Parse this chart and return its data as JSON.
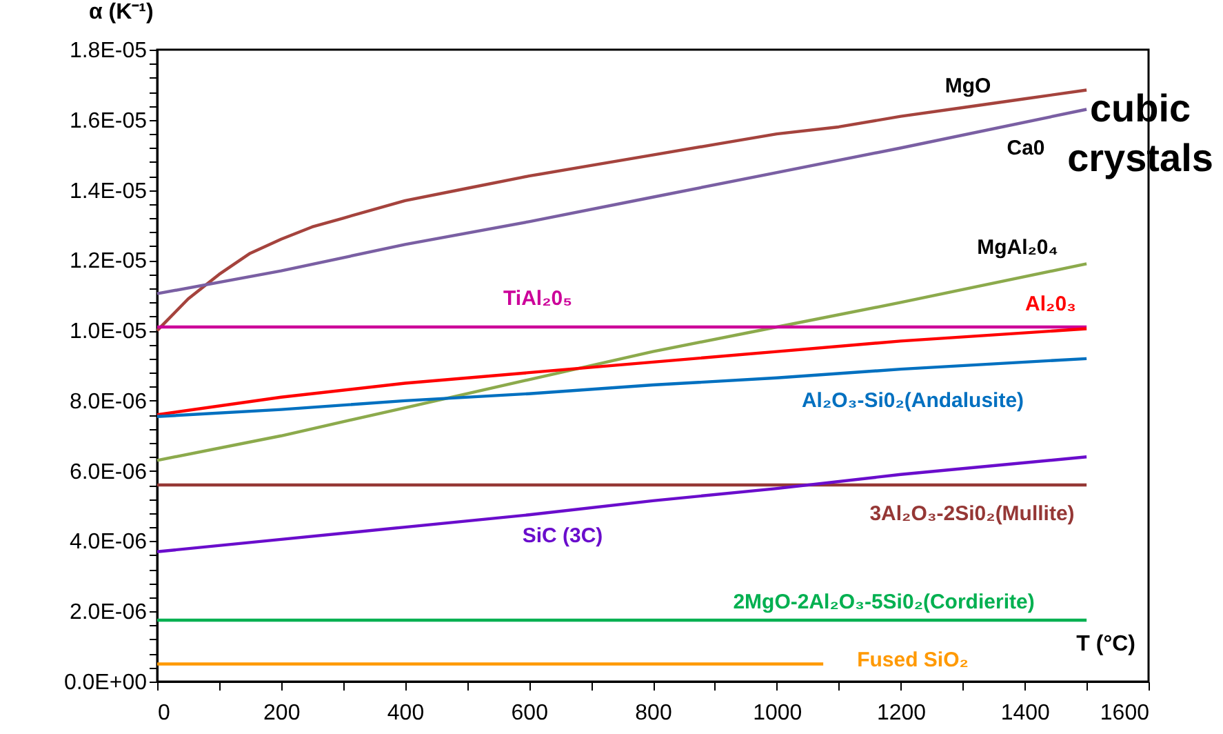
{
  "chart_data": {
    "type": "line",
    "ylabel": "α (K⁻¹)",
    "xlabel": "T (°C)",
    "xlim": [
      0,
      1600
    ],
    "xticks": [
      0,
      {
        "value": 100,
        "label": null
      },
      200,
      {
        "value": 300,
        "label": null
      },
      400,
      {
        "value": 500,
        "label": null
      },
      600,
      {
        "value": 700,
        "label": null
      },
      800,
      {
        "value": 900,
        "label": null
      },
      1000,
      {
        "value": 1100,
        "label": null
      },
      1200,
      {
        "value": 1300,
        "label": null
      },
      1400,
      {
        "value": 1500,
        "label": null
      },
      1600
    ],
    "ylim": [
      0,
      1.8e-05
    ],
    "yticks": [
      {
        "value": 0,
        "label": "0.0E+00"
      },
      {
        "value": 4e-07,
        "label": null
      },
      {
        "value": 8e-07,
        "label": null
      },
      {
        "value": 1.2e-06,
        "label": null
      },
      {
        "value": 1.6e-06,
        "label": null
      },
      {
        "value": 2e-06,
        "label": "2.0E-06"
      },
      {
        "value": 2.4e-06,
        "label": null
      },
      {
        "value": 2.8e-06,
        "label": null
      },
      {
        "value": 3.2e-06,
        "label": null
      },
      {
        "value": 3.6e-06,
        "label": null
      },
      {
        "value": 4e-06,
        "label": "4.0E-06"
      },
      {
        "value": 4.4e-06,
        "label": null
      },
      {
        "value": 4.8e-06,
        "label": null
      },
      {
        "value": 5.2e-06,
        "label": null
      },
      {
        "value": 5.6e-06,
        "label": null
      },
      {
        "value": 6e-06,
        "label": "6.0E-06"
      },
      {
        "value": 6.4e-06,
        "label": null
      },
      {
        "value": 6.8e-06,
        "label": null
      },
      {
        "value": 7.2e-06,
        "label": null
      },
      {
        "value": 7.6e-06,
        "label": null
      },
      {
        "value": 8e-06,
        "label": "8.0E-06"
      },
      {
        "value": 8.4e-06,
        "label": null
      },
      {
        "value": 8.8e-06,
        "label": null
      },
      {
        "value": 9.2e-06,
        "label": null
      },
      {
        "value": 9.6e-06,
        "label": null
      },
      {
        "value": 1e-05,
        "label": "1.0E-05"
      },
      {
        "value": 1.04e-05,
        "label": null
      },
      {
        "value": 1.08e-05,
        "label": null
      },
      {
        "value": 1.12e-05,
        "label": null
      },
      {
        "value": 1.16e-05,
        "label": null
      },
      {
        "value": 1.2e-05,
        "label": "1.2E-05"
      },
      {
        "value": 1.24e-05,
        "label": null
      },
      {
        "value": 1.28e-05,
        "label": null
      },
      {
        "value": 1.32e-05,
        "label": null
      },
      {
        "value": 1.36e-05,
        "label": null
      },
      {
        "value": 1.4e-05,
        "label": "1.4E-05"
      },
      {
        "value": 1.44e-05,
        "label": null
      },
      {
        "value": 1.48e-05,
        "label": null
      },
      {
        "value": 1.52e-05,
        "label": null
      },
      {
        "value": 1.56e-05,
        "label": null
      },
      {
        "value": 1.6e-05,
        "label": "1.6E-05"
      },
      {
        "value": 1.64e-05,
        "label": null
      },
      {
        "value": 1.68e-05,
        "label": null
      },
      {
        "value": 1.72e-05,
        "label": null
      },
      {
        "value": 1.76e-05,
        "label": null
      },
      {
        "value": 1.8e-05,
        "label": "1.8E-05"
      }
    ],
    "grid": false,
    "legend": false,
    "marker": "none",
    "line_style": "solid",
    "annotations": [
      "cubic crystals"
    ],
    "series": [
      {
        "name": "MgO",
        "color": "#a5433d",
        "x": [
          0,
          50,
          100,
          150,
          200,
          250,
          300,
          400,
          500,
          600,
          700,
          800,
          900,
          1000,
          1100,
          1200,
          1300,
          1400,
          1500
        ],
        "values": [
          1e-05,
          1.09e-05,
          1.16e-05,
          1.22e-05,
          1.26e-05,
          1.295e-05,
          1.32e-05,
          1.37e-05,
          1.405e-05,
          1.44e-05,
          1.47e-05,
          1.5e-05,
          1.53e-05,
          1.56e-05,
          1.58e-05,
          1.61e-05,
          1.635e-05,
          1.66e-05,
          1.685e-05
        ]
      },
      {
        "name": "Ca0",
        "color": "#7a5fa3",
        "x": [
          0,
          200,
          400,
          600,
          800,
          1000,
          1200,
          1500
        ],
        "values": [
          1.105e-05,
          1.17e-05,
          1.245e-05,
          1.31e-05,
          1.38e-05,
          1.45e-05,
          1.52e-05,
          1.63e-05
        ]
      },
      {
        "name": "MgAl₂0₄",
        "color": "#8caa4c",
        "x": [
          0,
          200,
          400,
          600,
          800,
          1000,
          1200,
          1500
        ],
        "values": [
          6.3e-06,
          7e-06,
          7.8e-06,
          8.6e-06,
          9.4e-06,
          1.01e-05,
          1.08e-05,
          1.19e-05
        ]
      },
      {
        "name": "TiAl₂0₅",
        "color": "#cc0099",
        "x": [
          0,
          1500
        ],
        "values": [
          1.01e-05,
          1.01e-05
        ]
      },
      {
        "name": "Al₂0₃",
        "color": "#ff0000",
        "x": [
          0,
          200,
          400,
          600,
          800,
          1000,
          1200,
          1500
        ],
        "values": [
          7.6e-06,
          8.1e-06,
          8.5e-06,
          8.8e-06,
          9.1e-06,
          9.4e-06,
          9.7e-06,
          1.005e-05
        ]
      },
      {
        "name": "Al₂O₃-Si0₂(Andalusite)",
        "color": "#0070c0",
        "x": [
          0,
          200,
          400,
          600,
          800,
          1000,
          1200,
          1500
        ],
        "values": [
          7.55e-06,
          7.75e-06,
          8e-06,
          8.2e-06,
          8.45e-06,
          8.65e-06,
          8.9e-06,
          9.2e-06
        ]
      },
      {
        "name": "3Al₂O₃-2Si0₂(Mullite)",
        "color": "#953735",
        "x": [
          0,
          1500
        ],
        "values": [
          5.6e-06,
          5.6e-06
        ]
      },
      {
        "name": "SiC (3C)",
        "color": "#6a0dcc",
        "x": [
          0,
          200,
          400,
          600,
          800,
          1000,
          1200,
          1500
        ],
        "values": [
          3.7e-06,
          4.05e-06,
          4.4e-06,
          4.75e-06,
          5.15e-06,
          5.5e-06,
          5.9e-06,
          6.4e-06
        ]
      },
      {
        "name": "2MgO-2Al₂O₃-5Si0₂(Cordierite)",
        "color": "#00b050",
        "x": [
          0,
          1500
        ],
        "values": [
          1.75e-06,
          1.75e-06
        ]
      },
      {
        "name": "Fused SiO₂",
        "color": "#ff9900",
        "x": [
          0,
          1075
        ],
        "values": [
          5e-07,
          5e-07
        ]
      }
    ]
  }
}
